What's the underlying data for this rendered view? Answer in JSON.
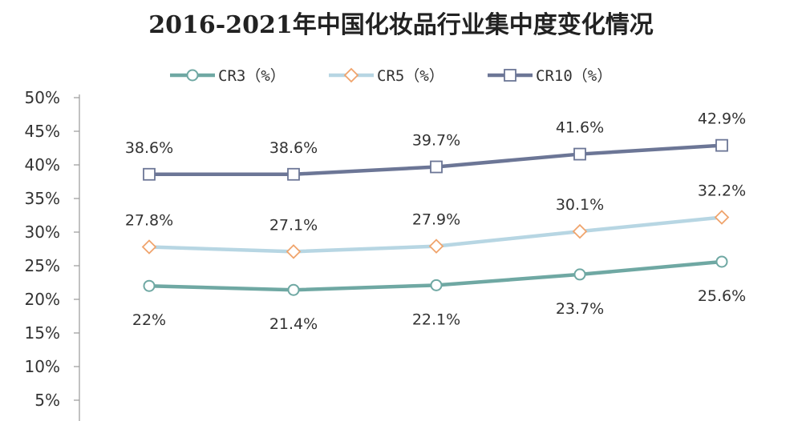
{
  "title": "2016-2021年中国化妆品行业集中度变化情况",
  "chart_data": {
    "type": "line",
    "title": "2016-2021年中国化妆品行业集中度变化情况",
    "xlabel": "",
    "ylabel": "",
    "ylim": [
      0,
      50
    ],
    "yticks": [
      "5%",
      "10%",
      "15%",
      "20%",
      "25%",
      "30%",
      "35%",
      "40%",
      "45%",
      "50%"
    ],
    "grid": false,
    "legend_position": "top",
    "series": [
      {
        "name": "CR3（%）",
        "color": "#6fa8a3",
        "marker": "circle",
        "values": [
          22,
          21.4,
          22.1,
          23.7,
          25.6
        ],
        "labels": [
          "22%",
          "21.4%",
          "22.1%",
          "23.7%",
          "25.6%"
        ]
      },
      {
        "name": "CR5（%）",
        "color": "#b7d6e3",
        "marker": "diamond",
        "values": [
          27.8,
          27.1,
          27.9,
          30.1,
          32.2
        ],
        "labels": [
          "27.8%",
          "27.1%",
          "27.9%",
          "30.1%",
          "32.2%"
        ]
      },
      {
        "name": "CR10（%）",
        "color": "#6c7696",
        "marker": "square",
        "values": [
          38.6,
          38.6,
          39.7,
          41.6,
          42.9
        ],
        "labels": [
          "38.6%",
          "38.6%",
          "39.7%",
          "41.6%",
          "42.9%"
        ]
      }
    ]
  }
}
